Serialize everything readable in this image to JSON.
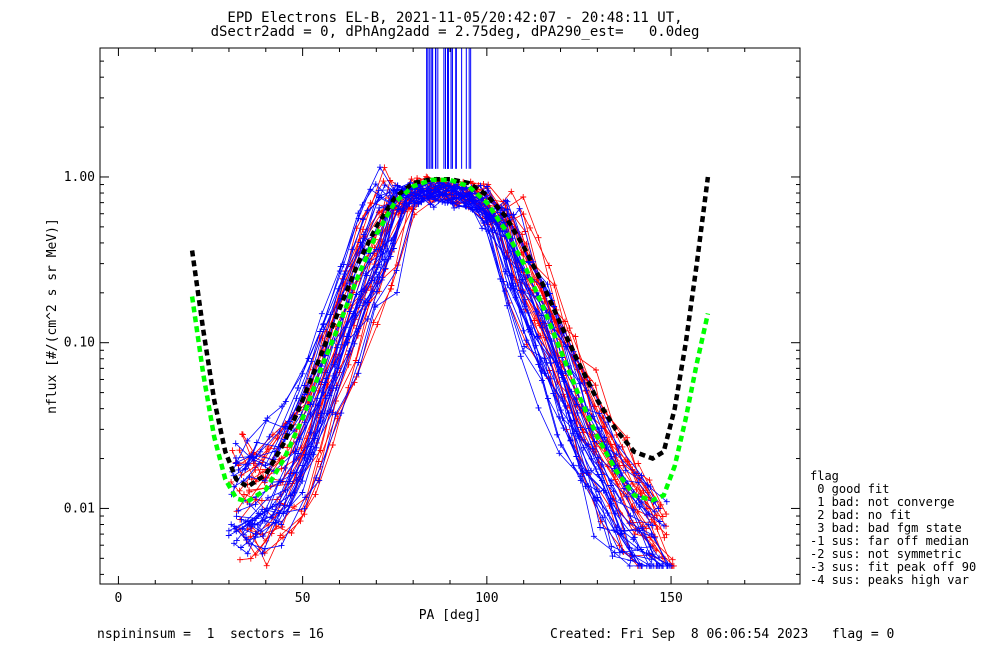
{
  "header": {
    "title_line1": "EPD Electrons EL-B, 2021-11-05/20:42:07 - 20:48:11 UT,",
    "title_line2": "dSectr2add = 0, dPhAng2add = 2.75deg, dPA290_est=   0.0deg"
  },
  "footer": {
    "left": "nspininsum =  1  sectors = 16",
    "right": "Created: Fri Sep  8 06:06:54 2023   flag = 0"
  },
  "legend": {
    "title": "flag",
    "items": [
      " 0 good fit",
      " 1 bad: not converge",
      " 2 bad: no fit",
      " 3 bad: bad fgm state",
      "-1 sus: far off median",
      "-2 sus: not symmetric",
      "-3 sus: fit peak off 90",
      "-4 sus: peaks high var"
    ]
  },
  "colors": {
    "series_a": "#ff0000",
    "series_b": "#0000ff",
    "fit_a": "#000000",
    "fit_b": "#00ff00"
  },
  "chart_data": {
    "type": "line",
    "xlabel": "PA [deg]",
    "ylabel": "nflux [#/(cm^2 s sr MeV)]",
    "xlim": [
      -5,
      185
    ],
    "ylim": [
      0.0035,
      6.0
    ],
    "yscale": "log",
    "xticks": [
      0,
      50,
      100,
      150
    ],
    "xtick_labels": [
      "0",
      "50",
      "100",
      "150"
    ],
    "yticks": [
      0.01,
      0.1,
      1.0
    ],
    "ytick_labels": [
      "0.01",
      "0.10",
      "1.00"
    ],
    "grid": false,
    "series": [
      {
        "color": "red",
        "x": [
          33,
          37,
          42,
          47,
          52,
          57,
          62,
          67,
          72,
          77,
          82,
          87,
          92,
          97,
          102,
          107,
          112,
          117,
          122,
          127,
          132,
          137,
          142,
          147
        ],
        "y": [
          0.012,
          0.011,
          0.013,
          0.017,
          0.03,
          0.06,
          0.13,
          0.26,
          0.45,
          0.7,
          0.85,
          0.82,
          0.8,
          0.78,
          0.6,
          0.38,
          0.22,
          0.12,
          0.065,
          0.035,
          0.02,
          0.013,
          0.009,
          0.006
        ]
      },
      {
        "color": "blue",
        "x": [
          33,
          37,
          42,
          47,
          52,
          57,
          62,
          67,
          72,
          77,
          82,
          87,
          92,
          97,
          102,
          107,
          112,
          117,
          122,
          127,
          132,
          137,
          142,
          147
        ],
        "y": [
          0.011,
          0.012,
          0.015,
          0.02,
          0.035,
          0.07,
          0.15,
          0.3,
          0.5,
          0.75,
          0.8,
          0.78,
          0.77,
          0.75,
          0.55,
          0.32,
          0.18,
          0.1,
          0.05,
          0.028,
          0.017,
          0.011,
          0.008,
          0.006
        ]
      },
      {
        "color": "black",
        "style": "dashed",
        "x": [
          20,
          23,
          26,
          29,
          32,
          35,
          40,
          45,
          50,
          55,
          60,
          65,
          70,
          75,
          80,
          85,
          90,
          95,
          100,
          105,
          110,
          115,
          120,
          125,
          130,
          135,
          140,
          145,
          148,
          151,
          154,
          157,
          160
        ],
        "y": [
          0.36,
          0.12,
          0.045,
          0.022,
          0.015,
          0.0135,
          0.016,
          0.025,
          0.045,
          0.085,
          0.16,
          0.3,
          0.5,
          0.75,
          0.92,
          0.97,
          0.97,
          0.92,
          0.78,
          0.58,
          0.38,
          0.23,
          0.13,
          0.075,
          0.045,
          0.03,
          0.022,
          0.02,
          0.022,
          0.04,
          0.1,
          0.3,
          1.0
        ]
      },
      {
        "color": "green",
        "style": "dashed",
        "x": [
          20,
          23,
          26,
          29,
          32,
          35,
          40,
          45,
          50,
          55,
          60,
          65,
          70,
          75,
          80,
          85,
          90,
          95,
          100,
          105,
          110,
          115,
          120,
          125,
          130,
          135,
          140,
          145,
          148,
          151,
          154,
          157,
          160
        ],
        "y": [
          0.19,
          0.065,
          0.027,
          0.015,
          0.0115,
          0.011,
          0.013,
          0.02,
          0.035,
          0.07,
          0.13,
          0.25,
          0.45,
          0.7,
          0.88,
          0.96,
          0.96,
          0.88,
          0.7,
          0.48,
          0.3,
          0.17,
          0.09,
          0.048,
          0.027,
          0.017,
          0.012,
          0.0112,
          0.012,
          0.018,
          0.035,
          0.075,
          0.15
        ]
      }
    ]
  }
}
